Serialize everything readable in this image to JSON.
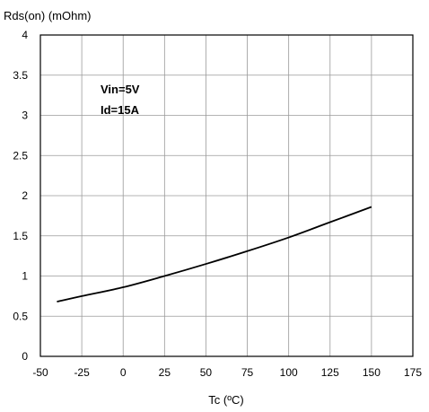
{
  "chart_data": {
    "type": "line",
    "title": "",
    "xlabel": "Tc (ºC)",
    "ylabel": "Rds(on) (mOhm)",
    "xlim": [
      -50,
      175
    ],
    "ylim": [
      0,
      4
    ],
    "xticks": [
      -50,
      -25,
      0,
      25,
      50,
      75,
      100,
      125,
      150,
      175
    ],
    "yticks": [
      0,
      0.5,
      1,
      1.5,
      2,
      2.5,
      3,
      3.5,
      4
    ],
    "xtick_labels": [
      "-50",
      "-25",
      "0",
      "25",
      "50",
      "75",
      "100",
      "125",
      "150",
      "175"
    ],
    "ytick_labels": [
      "0",
      "0.5",
      "1",
      "1.5",
      "2",
      "2.5",
      "3",
      "3.5",
      "4"
    ],
    "grid": true,
    "annotations": [
      "Vin=5V",
      "Id=15A"
    ],
    "series": [
      {
        "x": [
          -40,
          -25,
          0,
          25,
          50,
          75,
          100,
          125,
          150
        ],
        "y": [
          0.68,
          0.75,
          0.86,
          1.0,
          1.15,
          1.31,
          1.48,
          1.67,
          1.86
        ],
        "color": "#000000"
      }
    ]
  }
}
